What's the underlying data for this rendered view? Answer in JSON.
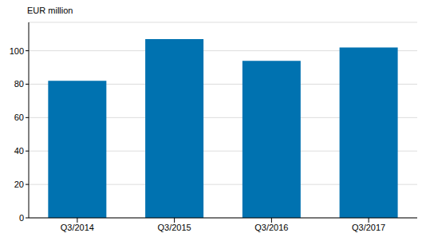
{
  "chart_data": {
    "type": "bar",
    "y_label": "EUR million",
    "categories": [
      "Q3/2014",
      "Q3/2015",
      "Q3/2016",
      "Q3/2017"
    ],
    "values": [
      82,
      107,
      94,
      102
    ],
    "color": "#0072b0",
    "ylim": [
      0,
      117
    ],
    "yticks": [
      0,
      20,
      40,
      60,
      80,
      100
    ],
    "grid": true
  }
}
